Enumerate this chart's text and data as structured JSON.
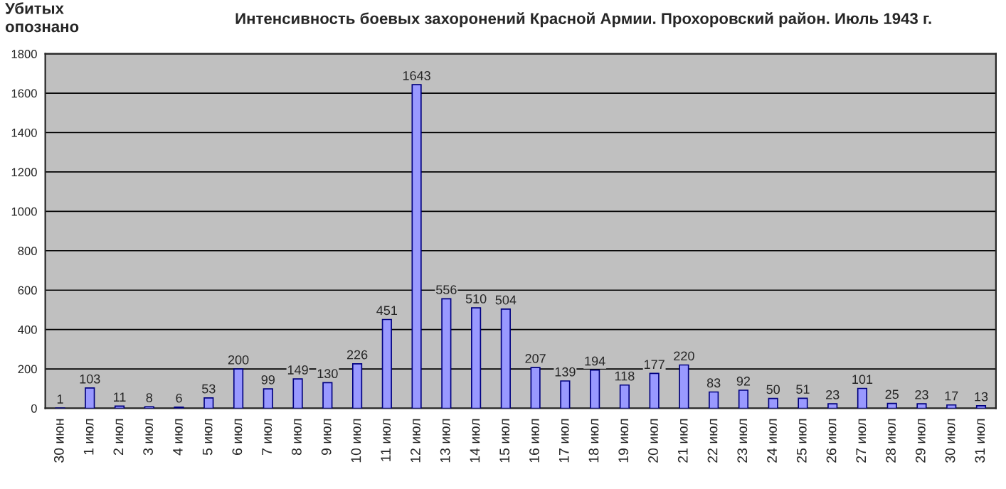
{
  "chart_data": {
    "type": "bar",
    "title": "Интенсивность боевых захоронений Красной Армии. Прохоровский район. Июль 1943 г.",
    "ylabel": "Убитых\nопознано",
    "categories": [
      "30 июн",
      "1 июл",
      "2 июл",
      "3 июл",
      "4 июл",
      "5 июл",
      "6 июл",
      "7 июл",
      "8 июл",
      "9 июл",
      "10 июл",
      "11 июл",
      "12 июл",
      "13 июл",
      "14 июл",
      "15 июл",
      "16 июл",
      "17 июл",
      "18 июл",
      "19 июл",
      "20 июл",
      "21 июл",
      "22 июл",
      "23 июл",
      "24 июл",
      "25 июл",
      "26 июл",
      "27 июл",
      "28 июл",
      "29 июл",
      "30 июл",
      "31 июл"
    ],
    "values": [
      1,
      103,
      11,
      8,
      6,
      53,
      200,
      99,
      149,
      130,
      226,
      451,
      1643,
      556,
      510,
      504,
      207,
      139,
      194,
      118,
      177,
      220,
      83,
      92,
      50,
      51,
      23,
      101,
      25,
      23,
      17,
      13
    ],
    "color": "#9999ff",
    "ylim": [
      0,
      1800
    ],
    "yticks": [
      0,
      200,
      400,
      600,
      800,
      1000,
      1200,
      1400,
      1600,
      1800
    ],
    "grid": "y",
    "data_labels": true
  }
}
